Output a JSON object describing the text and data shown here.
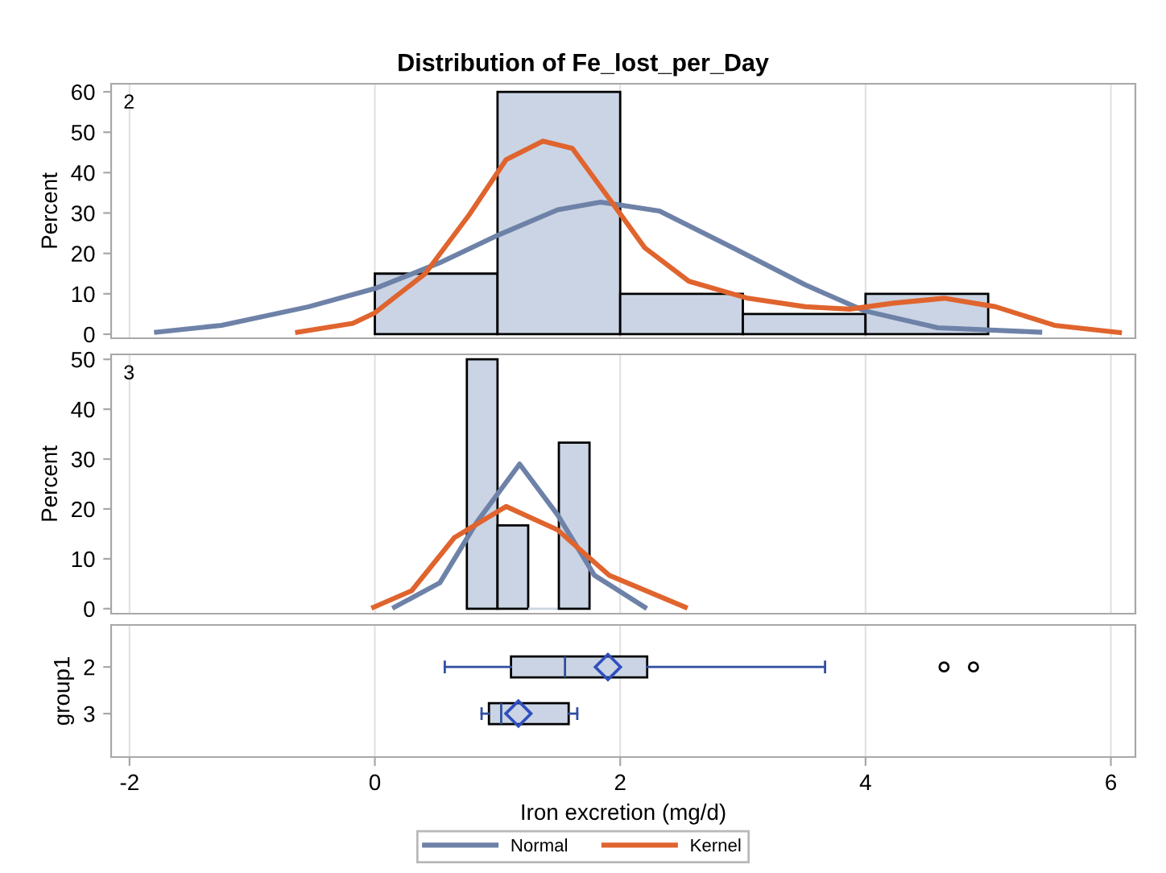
{
  "chart_data": [
    {
      "type": "histogram",
      "title": "Distribution of Fe_lost_per_Day",
      "ylabel": "Percent",
      "annotations": [
        "2"
      ],
      "xlim": [
        -2.15,
        6.2
      ],
      "xticks": [
        -2,
        0,
        2,
        4,
        6
      ],
      "ylim": [
        -1,
        62
      ],
      "yticks": [
        0,
        10,
        20,
        30,
        40,
        50,
        60
      ],
      "grid": "x",
      "tick_labels": "y",
      "legend": "bottom",
      "series": [
        {
          "type": "histogram",
          "color": "#cad4e4",
          "bins": [
            0,
            1,
            2,
            3,
            4,
            5
          ],
          "values": [
            15,
            60,
            10,
            5,
            10
          ]
        },
        {
          "type": "line",
          "name": "Normal",
          "color": "#6e82a8",
          "x": [
            -1.78,
            -1.25,
            -0.54,
            0,
            0.53,
            1.01,
            1.49,
            1.84,
            2.32,
            2.92,
            3.51,
            3.99,
            4.59,
            5.42
          ],
          "values": [
            0.5,
            2.2,
            6.8,
            11.3,
            17.7,
            24.6,
            30.8,
            32.7,
            30.5,
            21.4,
            12.2,
            5.8,
            1.6,
            0.5
          ]
        },
        {
          "type": "line",
          "name": "Kernel",
          "color": "#e0642e",
          "x": [
            -0.63,
            -0.18,
            0,
            0.41,
            0.77,
            1.07,
            1.37,
            1.61,
            1.9,
            2.2,
            2.56,
            3.04,
            3.51,
            3.87,
            4.23,
            4.64,
            5.06,
            5.54,
            6.07
          ],
          "values": [
            0.5,
            2.7,
            5.3,
            15,
            29.6,
            43.2,
            47.8,
            46,
            34,
            21.4,
            13.1,
            8.9,
            6.8,
            6.2,
            7.7,
            8.9,
            6.8,
            2.2,
            0.4
          ]
        }
      ]
    },
    {
      "type": "histogram",
      "ylabel": "Percent",
      "annotations": [
        "3"
      ],
      "xlim": [
        -2.15,
        6.2
      ],
      "xticks": [
        -2,
        0,
        2,
        4,
        6
      ],
      "ylim": [
        -1,
        51
      ],
      "yticks": [
        0,
        10,
        20,
        30,
        40,
        50
      ],
      "grid": "x",
      "tick_labels": "y",
      "series": [
        {
          "type": "histogram",
          "color": "#cad4e4",
          "bins": [
            0.75,
            1.0,
            1.25,
            1.5,
            1.75
          ],
          "values": [
            50,
            16.7,
            0,
            33.3
          ]
        },
        {
          "type": "line",
          "color": "#6e82a8",
          "x": [
            0.16,
            0.53,
            0.83,
            1.18,
            1.49,
            1.79,
            2.2
          ],
          "values": [
            0.3,
            5.2,
            17.3,
            29,
            18.8,
            6.7,
            0.3
          ]
        },
        {
          "type": "line",
          "color": "#e0642e",
          "x": [
            -0.01,
            0.3,
            0.65,
            1.07,
            1.49,
            1.91,
            2.53
          ],
          "values": [
            0.3,
            3.6,
            14.3,
            20.5,
            15.8,
            6.7,
            0.3
          ]
        }
      ]
    },
    {
      "type": "box",
      "orientation": "horizontal",
      "xlabel": "Iron excretion (mg/d)",
      "ylabel": "group1",
      "categories": [
        "2",
        "3"
      ],
      "xlim": [
        -2.15,
        6.2
      ],
      "xticks": [
        -2,
        0,
        2,
        4,
        6
      ],
      "grid": "x",
      "color": "#cad4e4",
      "boxes": [
        {
          "low": 0.57,
          "q1": 1.11,
          "median": 1.55,
          "q3": 2.22,
          "high": 3.67,
          "mean": 1.9,
          "outliers": [
            4.64,
            4.88
          ]
        },
        {
          "low": 0.87,
          "q1": 0.93,
          "median": 1.03,
          "q3": 1.58,
          "high": 1.65,
          "mean": 1.17
        }
      ]
    }
  ]
}
